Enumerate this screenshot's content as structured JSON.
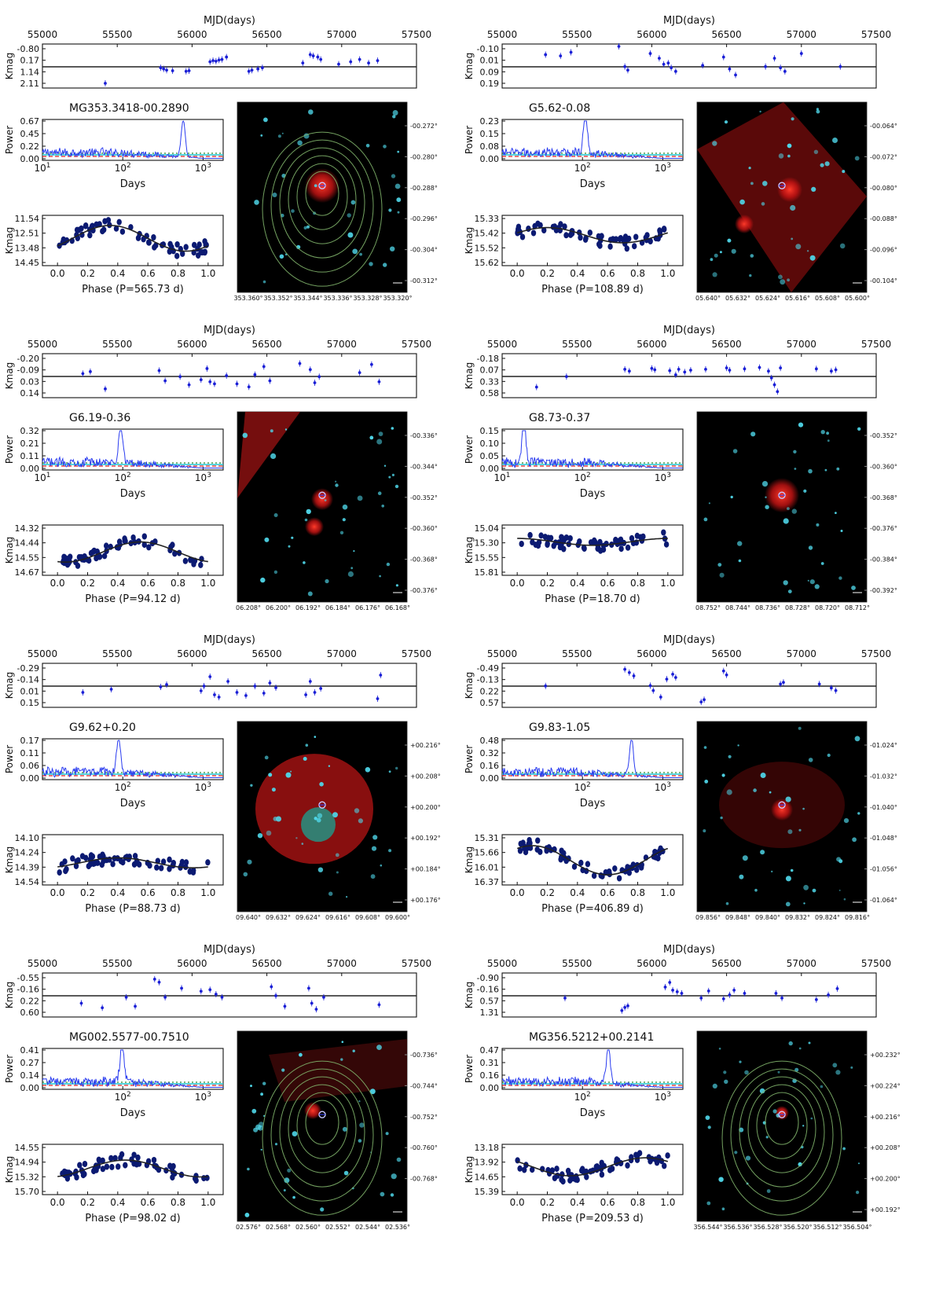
{
  "colors": {
    "points": "#1a1fd6",
    "phase_points": "#0b1a72",
    "fit": "#222222",
    "periodogram": "#2a3cf0",
    "fap_dotted": "#2e8b2e",
    "fap_cyan": "#20c9d6",
    "fap_dashed": "#e02020",
    "image_bg": "#000000",
    "nebula": "#c81414",
    "stars": "#4fd6e8",
    "contours": "#7fb26a"
  },
  "mjd_axis_label": "MJD(days)",
  "days_axis_label": "Days",
  "power_label": "Power",
  "kmag_label": "Kmag",
  "mjd_ticks": [
    "55000",
    "55500",
    "56000",
    "56500",
    "57000",
    "57500"
  ],
  "phase_ticks": [
    "0.0",
    "0.2",
    "0.4",
    "0.6",
    "0.8",
    "1.0"
  ],
  "panels": [
    {
      "name": "MG353.3418-00.2890",
      "lc_yticks": [
        "-0.80",
        "0.17",
        "1.14",
        "2.11"
      ],
      "power_yticks": [
        "0.67",
        "0.45",
        "0.22",
        "0.00"
      ],
      "days_ticks": [
        "10^1",
        "10^2",
        "10^3"
      ],
      "phase_yticks": [
        "11.54",
        "12.51",
        "13.48",
        "14.45"
      ],
      "phase_label": "Phase (P=565.73 d)",
      "img_yticks": [
        "-00.272°",
        "-00.280°",
        "-00.288°",
        "-00.296°",
        "-00.304°",
        "-00.312°"
      ],
      "img_xticks": [
        "353.360°",
        "353.352°",
        "353.344°",
        "353.336°",
        "353.328°",
        "353.320°"
      ],
      "img_features": {
        "nebula": "compact",
        "contours": true
      }
    },
    {
      "name": "G5.62-0.08",
      "lc_yticks": [
        "-0.10",
        "0.01",
        "0.09",
        "0.19"
      ],
      "power_yticks": [
        "0.23",
        "0.15",
        "0.08",
        "0.00"
      ],
      "days_ticks": [
        "10^2",
        "10^3"
      ],
      "phase_yticks": [
        "15.33",
        "15.42",
        "15.52",
        "15.62"
      ],
      "phase_label": "Phase (P=108.89 d)",
      "img_yticks": [
        "-00.064°",
        "-00.072°",
        "-00.080°",
        "-00.088°",
        "-00.096°",
        "-00.104°"
      ],
      "img_xticks": [
        "05.640°",
        "05.632°",
        "05.624°",
        "05.616°",
        "05.608°",
        "05.600°"
      ],
      "img_features": {
        "nebula": "rotated",
        "contours": false
      }
    },
    {
      "name": "G6.19-0.36",
      "lc_yticks": [
        "-0.20",
        "-0.09",
        "0.03",
        "0.14"
      ],
      "power_yticks": [
        "0.32",
        "0.21",
        "0.11",
        "0.00"
      ],
      "days_ticks": [
        "10^1",
        "10^2",
        "10^3"
      ],
      "phase_yticks": [
        "14.32",
        "14.44",
        "14.55",
        "14.67"
      ],
      "phase_label": "Phase (P=94.12 d)",
      "img_yticks": [
        "-00.336°",
        "-00.344°",
        "-00.352°",
        "-00.360°",
        "-00.368°",
        "-00.376°"
      ],
      "img_xticks": [
        "06.208°",
        "06.200°",
        "06.192°",
        "06.184°",
        "06.176°",
        "06.168°"
      ],
      "img_features": {
        "nebula": "corner",
        "contours": false
      }
    },
    {
      "name": "G8.73-0.37",
      "lc_yticks": [
        "-0.18",
        "0.07",
        "0.33",
        "0.58"
      ],
      "power_yticks": [
        "0.15",
        "0.10",
        "0.05",
        "0.00"
      ],
      "days_ticks": [
        "10^1",
        "10^2",
        "10^3"
      ],
      "phase_yticks": [
        "15.04",
        "15.30",
        "15.55",
        "15.81"
      ],
      "phase_label": "Phase (P=18.70 d)",
      "img_yticks": [
        "-00.352°",
        "-00.360°",
        "-00.368°",
        "-00.376°",
        "-00.384°",
        "-00.392°"
      ],
      "img_xticks": [
        "08.752°",
        "08.744°",
        "08.736°",
        "08.728°",
        "08.720°",
        "08.712°"
      ],
      "img_features": {
        "nebula": "compact",
        "contours": false
      }
    },
    {
      "name": "G9.62+0.20",
      "lc_yticks": [
        "-0.29",
        "-0.14",
        "0.01",
        "0.15"
      ],
      "power_yticks": [
        "0.17",
        "0.11",
        "0.06",
        "0.00"
      ],
      "days_ticks": [
        "10^2",
        "10^3"
      ],
      "phase_yticks": [
        "14.10",
        "14.24",
        "14.39",
        "14.54"
      ],
      "phase_label": "Phase (P=88.73 d)",
      "img_yticks": [
        "+00.216°",
        "+00.208°",
        "+00.200°",
        "+00.192°",
        "+00.184°",
        "+00.176°"
      ],
      "img_xticks": [
        "09.640°",
        "09.632°",
        "09.624°",
        "09.616°",
        "09.608°",
        "09.600°"
      ],
      "img_features": {
        "nebula": "large",
        "contours": false
      }
    },
    {
      "name": "G9.83-1.05",
      "lc_yticks": [
        "-0.49",
        "-0.13",
        "0.22",
        "0.57"
      ],
      "power_yticks": [
        "0.48",
        "0.32",
        "0.16",
        "0.00"
      ],
      "days_ticks": [
        "10^2",
        "10^3"
      ],
      "phase_yticks": [
        "15.31",
        "15.66",
        "16.01",
        "16.37"
      ],
      "phase_label": "Phase (P=406.89 d)",
      "img_yticks": [
        "-01.024°",
        "-01.032°",
        "-01.040°",
        "-01.048°",
        "-01.056°",
        "-01.064°"
      ],
      "img_xticks": [
        "09.856°",
        "09.848°",
        "09.840°",
        "09.832°",
        "09.824°",
        "09.816°"
      ],
      "img_features": {
        "nebula": "diffuse",
        "contours": false
      }
    },
    {
      "name": "MG002.5577-00.7510",
      "lc_yticks": [
        "-0.55",
        "-0.16",
        "0.22",
        "0.60"
      ],
      "power_yticks": [
        "0.41",
        "0.27",
        "0.14",
        "0.00"
      ],
      "days_ticks": [
        "10^2",
        "10^3"
      ],
      "phase_yticks": [
        "14.55",
        "14.94",
        "15.32",
        "15.70"
      ],
      "phase_label": "Phase (P=98.02 d)",
      "img_yticks": [
        "-00.736°",
        "-00.744°",
        "-00.752°",
        "-00.760°",
        "-00.768°"
      ],
      "img_xticks": [
        "02.576°",
        "02.568°",
        "02.560°",
        "02.552°",
        "02.544°",
        "02.536°"
      ],
      "img_features": {
        "nebula": "faint",
        "contours": true
      }
    },
    {
      "name": "MG356.5212+00.2141",
      "lc_yticks": [
        "-0.90",
        "-0.16",
        "0.57",
        "1.31"
      ],
      "power_yticks": [
        "0.47",
        "0.31",
        "0.16",
        "0.00"
      ],
      "days_ticks": [
        "10^2",
        "10^3"
      ],
      "phase_yticks": [
        "13.18",
        "13.92",
        "14.65",
        "15.39"
      ],
      "phase_label": "Phase (P=209.53 d)",
      "img_yticks": [
        "+00.232°",
        "+00.224°",
        "+00.216°",
        "+00.208°",
        "+00.200°",
        "+00.192°"
      ],
      "img_xticks": [
        "356.544°",
        "356.536°",
        "356.528°",
        "356.520°",
        "356.512°",
        "356.504°"
      ],
      "img_features": {
        "nebula": "none",
        "contours": true
      }
    }
  ],
  "chart_data": [
    {
      "type": "scatter",
      "title": "MG353.3418-00.2890",
      "description": "Light curve, Lomb-Scargle periodogram and phase-folded curve",
      "light_curve": {
        "xlabel": "MJD(days)",
        "ylabel": "Kmag",
        "xlim": [
          55000,
          57500
        ],
        "ylim": [
          2.11,
          -0.8
        ],
        "x": [
          55420,
          55790,
          55810,
          55830,
          55870,
          55960,
          55980,
          56120,
          56140,
          56160,
          56180,
          56200,
          56230,
          56380,
          56400,
          56440,
          56470,
          56740,
          56790,
          56810,
          56840,
          56860,
          56980,
          57060,
          57120,
          57180,
          57240
        ],
        "y": [
          2.11,
          0.8,
          0.9,
          1.0,
          1.05,
          1.1,
          1.05,
          0.3,
          0.2,
          0.25,
          0.15,
          0.1,
          -0.1,
          1.1,
          1.0,
          0.9,
          0.8,
          0.4,
          -0.3,
          -0.2,
          -0.1,
          0.1,
          0.5,
          0.3,
          0.1,
          0.4,
          0.2
        ]
      },
      "periodogram": {
        "xlabel": "Days",
        "ylabel": "Power",
        "xscale": "log",
        "peak_period": 565.73,
        "peak_power": 0.62,
        "ylim": [
          0,
          0.67
        ]
      },
      "phase_curve": {
        "xlabel": "Phase (P=565.73 d)",
        "ylabel": "Kmag",
        "period_days": 565.73,
        "ylim": [
          14.45,
          11.54
        ],
        "fit_mean": 12.85,
        "fit_amplitude": 0.85,
        "fit_phase_min": 0.35
      }
    },
    {
      "type": "scatter",
      "title": "G5.62-0.08",
      "light_curve": {
        "xlabel": "MJD(days)",
        "ylabel": "Kmag",
        "xlim": [
          55000,
          57500
        ],
        "ylim": [
          0.19,
          -0.1
        ],
        "x": [
          55290,
          55390,
          55460,
          55780,
          55820,
          55840,
          55990,
          56050,
          56080,
          56110,
          56130,
          56160,
          56340,
          56480,
          56520,
          56560,
          56760,
          56820,
          56860,
          56890,
          57000,
          57260
        ],
        "y": [
          -0.05,
          -0.04,
          -0.07,
          -0.12,
          0.05,
          0.08,
          -0.06,
          -0.02,
          0.03,
          0.02,
          0.06,
          0.09,
          0.04,
          -0.03,
          0.07,
          0.12,
          0.05,
          -0.02,
          0.06,
          0.09,
          -0.06,
          0.05
        ]
      },
      "periodogram": {
        "xlabel": "Days",
        "ylabel": "Power",
        "xscale": "log",
        "peak_period": 108.89,
        "peak_power": 0.22,
        "ylim": [
          0,
          0.23
        ]
      },
      "phase_curve": {
        "xlabel": "Phase (P=108.89 d)",
        "ylabel": "Kmag",
        "period_days": 108.89,
        "ylim": [
          15.62,
          15.33
        ],
        "fit_mean": 15.44,
        "fit_amplitude": 0.05,
        "fit_phase_min": 0.2
      }
    },
    {
      "type": "scatter",
      "title": "G6.19-0.36",
      "light_curve": {
        "xlabel": "MJD(days)",
        "ylabel": "Kmag",
        "xlim": [
          55000,
          57500
        ],
        "ylim": [
          0.14,
          -0.2
        ],
        "x": [
          55270,
          55320,
          55420,
          55780,
          55820,
          55920,
          55980,
          56060,
          56100,
          56120,
          56150,
          56230,
          56300,
          56380,
          56420,
          56480,
          56520,
          56720,
          56790,
          56820,
          56850,
          57120,
          57200,
          57250
        ],
        "y": [
          -0.05,
          -0.07,
          0.1,
          -0.08,
          0.02,
          -0.02,
          0.06,
          0.01,
          -0.1,
          0.03,
          0.05,
          -0.03,
          0.05,
          0.08,
          -0.04,
          -0.12,
          0.02,
          -0.15,
          -0.09,
          0.04,
          -0.02,
          -0.06,
          -0.14,
          0.03
        ]
      },
      "periodogram": {
        "xlabel": "Days",
        "ylabel": "Power",
        "xscale": "log",
        "peak_period": 94.12,
        "peak_power": 0.3,
        "ylim": [
          0,
          0.32
        ]
      },
      "phase_curve": {
        "xlabel": "Phase (P=94.12 d)",
        "ylabel": "Kmag",
        "period_days": 94.12,
        "ylim": [
          14.67,
          14.32
        ],
        "fit_mean": 14.51,
        "fit_amplitude": 0.08,
        "fit_phase_min": 0.55
      }
    },
    {
      "type": "scatter",
      "title": "G8.73-0.37",
      "light_curve": {
        "xlabel": "MJD(days)",
        "ylabel": "Kmag",
        "xlim": [
          55000,
          57500
        ],
        "ylim": [
          0.58,
          -0.18
        ],
        "x": [
          55230,
          55430,
          55820,
          55850,
          56000,
          56020,
          56120,
          56160,
          56180,
          56220,
          56260,
          56360,
          56500,
          56520,
          56620,
          56720,
          56780,
          56800,
          56820,
          56840,
          56860,
          57100,
          57200,
          57230
        ],
        "y": [
          0.45,
          0.22,
          0.06,
          0.1,
          0.04,
          0.07,
          0.09,
          0.18,
          0.06,
          0.12,
          0.08,
          0.06,
          0.03,
          0.08,
          0.05,
          0.02,
          0.1,
          0.25,
          0.4,
          0.55,
          0.03,
          0.05,
          0.1,
          0.07
        ]
      },
      "periodogram": {
        "xlabel": "Days",
        "ylabel": "Power",
        "xscale": "log",
        "peak_period": 18.7,
        "peak_power": 0.14,
        "ylim": [
          0,
          0.15
        ]
      },
      "phase_curve": {
        "xlabel": "Phase (P=18.70 d)",
        "ylabel": "Kmag",
        "period_days": 18.7,
        "ylim": [
          15.81,
          15.04
        ],
        "fit_mean": 15.28,
        "fit_amplitude": 0.06,
        "fit_phase_min": 0.0
      }
    },
    {
      "type": "scatter",
      "title": "G9.62+0.20",
      "light_curve": {
        "xlabel": "MJD(days)",
        "ylabel": "Kmag",
        "xlim": [
          55000,
          57500
        ],
        "ylim": [
          0.15,
          -0.29
        ],
        "x": [
          55270,
          55460,
          55790,
          55830,
          56060,
          56080,
          56120,
          56150,
          56180,
          56240,
          56300,
          56360,
          56420,
          56480,
          56520,
          56560,
          56760,
          56790,
          56820,
          56860,
          57240,
          57260
        ],
        "y": [
          0.02,
          -0.02,
          -0.05,
          -0.08,
          0.0,
          -0.06,
          -0.18,
          0.05,
          0.08,
          -0.12,
          0.02,
          0.06,
          -0.06,
          0.03,
          -0.1,
          -0.04,
          0.05,
          -0.12,
          0.02,
          -0.03,
          0.1,
          -0.2
        ]
      },
      "periodogram": {
        "xlabel": "Days",
        "ylabel": "Power",
        "xscale": "log",
        "peak_period": 88.73,
        "peak_power": 0.16,
        "ylim": [
          0,
          0.17
        ]
      },
      "phase_curve": {
        "xlabel": "Phase (P=88.73 d)",
        "ylabel": "Kmag",
        "period_days": 88.73,
        "ylim": [
          14.54,
          14.1
        ],
        "fit_mean": 14.35,
        "fit_amplitude": 0.05,
        "fit_phase_min": 0.4
      }
    },
    {
      "type": "scatter",
      "title": "G9.83-1.05",
      "light_curve": {
        "xlabel": "MJD(days)",
        "ylabel": "Kmag",
        "xlim": [
          55000,
          57500
        ],
        "ylim": [
          0.57,
          -0.49
        ],
        "x": [
          55290,
          55820,
          55850,
          55880,
          55990,
          56010,
          56060,
          56100,
          56140,
          56160,
          56330,
          56350,
          56480,
          56500,
          56860,
          56880,
          57120,
          57200,
          57230
        ],
        "y": [
          0.06,
          -0.45,
          -0.35,
          -0.25,
          0.05,
          0.2,
          0.4,
          -0.15,
          -0.3,
          -0.2,
          0.55,
          0.48,
          -0.4,
          -0.28,
          0.0,
          -0.05,
          0.0,
          0.12,
          0.2
        ]
      },
      "periodogram": {
        "xlabel": "Days",
        "ylabel": "Power",
        "xscale": "log",
        "peak_period": 406.89,
        "peak_power": 0.46,
        "ylim": [
          0,
          0.48
        ]
      },
      "phase_curve": {
        "xlabel": "Phase (P=406.89 d)",
        "ylabel": "Kmag",
        "period_days": 406.89,
        "ylim": [
          16.37,
          15.31
        ],
        "fit_mean": 15.85,
        "fit_amplitude": 0.35,
        "fit_phase_min": 0.1
      }
    },
    {
      "type": "scatter",
      "title": "MG002.5577-00.7510",
      "light_curve": {
        "xlabel": "MJD(days)",
        "ylabel": "Kmag",
        "xlim": [
          55000,
          57500
        ],
        "ylim": [
          0.6,
          -0.55
        ],
        "x": [
          55260,
          55400,
          55560,
          55620,
          55750,
          55780,
          55820,
          55930,
          56060,
          56120,
          56160,
          56200,
          56530,
          56560,
          56620,
          56780,
          56800,
          56830,
          56880,
          57250
        ],
        "y": [
          0.3,
          0.45,
          0.1,
          0.4,
          -0.5,
          -0.4,
          0.1,
          -0.2,
          -0.1,
          -0.15,
          0.0,
          0.1,
          -0.25,
          0.05,
          0.4,
          -0.2,
          0.3,
          0.5,
          0.1,
          0.35
        ]
      },
      "periodogram": {
        "xlabel": "Days",
        "ylabel": "Power",
        "xscale": "log",
        "peak_period": 98.02,
        "peak_power": 0.4,
        "ylim": [
          0,
          0.41
        ]
      },
      "phase_curve": {
        "xlabel": "Phase (P=98.02 d)",
        "ylabel": "Kmag",
        "period_days": 98.02,
        "ylim": [
          15.7,
          14.55
        ],
        "fit_mean": 15.1,
        "fit_amplitude": 0.22,
        "fit_phase_min": 0.45
      }
    },
    {
      "type": "scatter",
      "title": "MG356.5212+00.2141",
      "light_curve": {
        "xlabel": "MJD(days)",
        "ylabel": "Kmag",
        "xlim": [
          55000,
          57500
        ],
        "ylim": [
          1.31,
          -0.9
        ],
        "x": [
          55420,
          55800,
          55820,
          55840,
          56090,
          56120,
          56140,
          56170,
          56200,
          56330,
          56380,
          56480,
          56520,
          56550,
          56620,
          56830,
          56870,
          57100,
          57180,
          57240
        ],
        "y": [
          0.4,
          1.2,
          1.0,
          0.9,
          -0.3,
          -0.6,
          -0.1,
          0.0,
          0.1,
          0.4,
          -0.05,
          0.45,
          0.2,
          -0.1,
          0.1,
          0.1,
          0.4,
          0.5,
          0.2,
          -0.2
        ]
      },
      "periodogram": {
        "xlabel": "Days",
        "ylabel": "Power",
        "xscale": "log",
        "peak_period": 209.53,
        "peak_power": 0.45,
        "ylim": [
          0,
          0.47
        ]
      },
      "phase_curve": {
        "xlabel": "Phase (P=209.53 d)",
        "ylabel": "Kmag",
        "period_days": 209.53,
        "ylim": [
          15.39,
          13.18
        ],
        "fit_mean": 14.15,
        "fit_amplitude": 0.45,
        "fit_phase_min": 0.85
      }
    }
  ]
}
